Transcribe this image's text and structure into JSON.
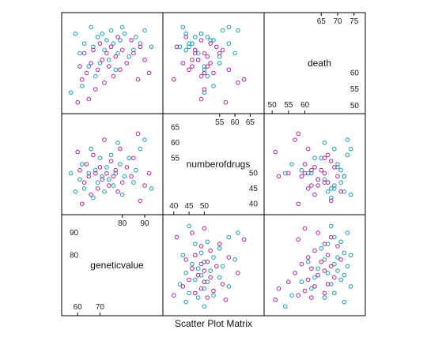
{
  "chart_data": {
    "type": "scatter",
    "subtype": "scatter-plot-matrix",
    "title": "Scatter Plot Matrix",
    "variables": [
      {
        "name": "geneticvalue",
        "range": [
          55,
          96
        ],
        "ticks_low": [
          60,
          70
        ],
        "ticks_high": [
          80,
          90
        ]
      },
      {
        "name": "numberofdrugs",
        "range": [
          38,
          68
        ],
        "ticks_low": [
          40,
          45,
          50
        ],
        "ticks_high": [
          55,
          60,
          65
        ]
      },
      {
        "name": "death",
        "range": [
          49,
          77
        ],
        "ticks_low": [
          50,
          55,
          60
        ],
        "ticks_high": [
          65,
          70,
          75
        ]
      }
    ],
    "series": [
      {
        "color": "#1a9bb0",
        "points": [
          {
            "geneticvalue": 93,
            "numberofdrugs": 45,
            "death": 68
          },
          {
            "geneticvalue": 90,
            "numberofdrugs": 61,
            "death": 73
          },
          {
            "geneticvalue": 88,
            "numberofdrugs": 58,
            "death": 69
          },
          {
            "geneticvalue": 86,
            "numberofdrugs": 51,
            "death": 71
          },
          {
            "geneticvalue": 85,
            "numberofdrugs": 47,
            "death": 67
          },
          {
            "geneticvalue": 83,
            "numberofdrugs": 55,
            "death": 65
          },
          {
            "geneticvalue": 81,
            "numberofdrugs": 49,
            "death": 72
          },
          {
            "geneticvalue": 80,
            "numberofdrugs": 43,
            "death": 74
          },
          {
            "geneticvalue": 79,
            "numberofdrugs": 53,
            "death": 70
          },
          {
            "geneticvalue": 78,
            "numberofdrugs": 60,
            "death": 66
          },
          {
            "geneticvalue": 77,
            "numberofdrugs": 50,
            "death": 61
          },
          {
            "geneticvalue": 76,
            "numberofdrugs": 46,
            "death": 69
          },
          {
            "geneticvalue": 75,
            "numberofdrugs": 56,
            "death": 73
          },
          {
            "geneticvalue": 74,
            "numberofdrugs": 48,
            "death": 64
          },
          {
            "geneticvalue": 73,
            "numberofdrugs": 52,
            "death": 70
          },
          {
            "geneticvalue": 72,
            "numberofdrugs": 44,
            "death": 67
          },
          {
            "geneticvalue": 71,
            "numberofdrugs": 49,
            "death": 72
          },
          {
            "geneticvalue": 70,
            "numberofdrugs": 55,
            "death": 63
          },
          {
            "geneticvalue": 69,
            "numberofdrugs": 47,
            "death": 71
          },
          {
            "geneticvalue": 68,
            "numberofdrugs": 51,
            "death": 59
          },
          {
            "geneticvalue": 67,
            "numberofdrugs": 42,
            "death": 68
          },
          {
            "geneticvalue": 66,
            "numberofdrugs": 58,
            "death": 74
          },
          {
            "geneticvalue": 65,
            "numberofdrugs": 50,
            "death": 62
          },
          {
            "geneticvalue": 63,
            "numberofdrugs": 45,
            "death": 69
          },
          {
            "geneticvalue": 62,
            "numberofdrugs": 53,
            "death": 56
          },
          {
            "geneticvalue": 61,
            "numberofdrugs": 48,
            "death": 66
          },
          {
            "geneticvalue": 59,
            "numberofdrugs": 44,
            "death": 72
          },
          {
            "geneticvalue": 57,
            "numberofdrugs": 50,
            "death": 54
          }
        ]
      },
      {
        "color": "#b0259e",
        "points": [
          {
            "geneticvalue": 92,
            "numberofdrugs": 50,
            "death": 60
          },
          {
            "geneticvalue": 90,
            "numberofdrugs": 46,
            "death": 64
          },
          {
            "geneticvalue": 88,
            "numberofdrugs": 41,
            "death": 68
          },
          {
            "geneticvalue": 87,
            "numberofdrugs": 63,
            "death": 58
          },
          {
            "geneticvalue": 85,
            "numberofdrugs": 55,
            "death": 66
          },
          {
            "geneticvalue": 84,
            "numberofdrugs": 49,
            "death": 70
          },
          {
            "geneticvalue": 82,
            "numberofdrugs": 52,
            "death": 63
          },
          {
            "geneticvalue": 80,
            "numberofdrugs": 47,
            "death": 67
          },
          {
            "geneticvalue": 79,
            "numberofdrugs": 58,
            "death": 61
          },
          {
            "geneticvalue": 78,
            "numberofdrugs": 44,
            "death": 71
          },
          {
            "geneticvalue": 77,
            "numberofdrugs": 51,
            "death": 65
          },
          {
            "geneticvalue": 76,
            "numberofdrugs": 49,
            "death": 59
          },
          {
            "geneticvalue": 75,
            "numberofdrugs": 54,
            "death": 68
          },
          {
            "geneticvalue": 74,
            "numberofdrugs": 46,
            "death": 62
          },
          {
            "geneticvalue": 73,
            "numberofdrugs": 50,
            "death": 66
          },
          {
            "geneticvalue": 72,
            "numberofdrugs": 61,
            "death": 57
          },
          {
            "geneticvalue": 71,
            "numberofdrugs": 48,
            "death": 64
          },
          {
            "geneticvalue": 70,
            "numberofdrugs": 52,
            "death": 69
          },
          {
            "geneticvalue": 69,
            "numberofdrugs": 45,
            "death": 61
          },
          {
            "geneticvalue": 68,
            "numberofdrugs": 50,
            "death": 55
          },
          {
            "geneticvalue": 67,
            "numberofdrugs": 56,
            "death": 67
          },
          {
            "geneticvalue": 66,
            "numberofdrugs": 43,
            "death": 63
          },
          {
            "geneticvalue": 65,
            "numberofdrugs": 49,
            "death": 52
          },
          {
            "geneticvalue": 64,
            "numberofdrugs": 53,
            "death": 60
          },
          {
            "geneticvalue": 63,
            "numberofdrugs": 47,
            "death": 66
          },
          {
            "geneticvalue": 62,
            "numberofdrugs": 40,
            "death": 58
          },
          {
            "geneticvalue": 61,
            "numberofdrugs": 51,
            "death": 62
          },
          {
            "geneticvalue": 60,
            "numberofdrugs": 57,
            "death": 51
          }
        ]
      }
    ],
    "legend": "none",
    "grid": false
  }
}
